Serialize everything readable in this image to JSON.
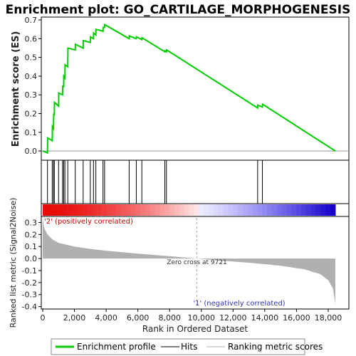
{
  "chart_data": {
    "type": "line",
    "title": "Enrichment plot: GO_CARTILAGE_MORPHOGENESIS",
    "x_range": [
      0,
      18500
    ],
    "x_ticks": [
      "0",
      "2,000",
      "4,000",
      "6,000",
      "8,000",
      "10,000",
      "12,000",
      "14,000",
      "16,000",
      "18,000"
    ],
    "x_tick_values": [
      0,
      2000,
      4000,
      6000,
      8000,
      10000,
      12000,
      14000,
      16000,
      18000
    ],
    "xlabel": "Rank in Ordered Dataset",
    "es_panel": {
      "ylabel": "Enrichment score (ES)",
      "ylim": [
        -0.03,
        0.7
      ],
      "y_ticks": [
        "0.0",
        "0.1",
        "0.2",
        "0.3",
        "0.4",
        "0.5",
        "0.6",
        "0.7"
      ],
      "y_tick_values": [
        0,
        0.1,
        0.2,
        0.3,
        0.4,
        0.5,
        0.6,
        0.7
      ],
      "series": [
        {
          "name": "Enrichment profile",
          "color": "#00cc00",
          "x": [
            0,
            300,
            310,
            600,
            610,
            680,
            690,
            730,
            740,
            1000,
            1010,
            1250,
            1260,
            1320,
            1330,
            1400,
            1410,
            1580,
            1590,
            2050,
            2060,
            2550,
            2560,
            3000,
            3010,
            3200,
            3210,
            3350,
            3360,
            3800,
            3810,
            3900,
            3910,
            5450,
            5460,
            5900,
            5910,
            6250,
            6260,
            7700,
            7710,
            7800,
            7810,
            13550,
            13560,
            13850,
            13860,
            18450
          ],
          "y": [
            0,
            -0.01,
            0.07,
            0.055,
            0.13,
            0.12,
            0.2,
            0.19,
            0.26,
            0.24,
            0.31,
            0.3,
            0.35,
            0.34,
            0.4,
            0.39,
            0.46,
            0.45,
            0.55,
            0.54,
            0.57,
            0.55,
            0.59,
            0.58,
            0.61,
            0.6,
            0.63,
            0.62,
            0.65,
            0.64,
            0.66,
            0.66,
            0.675,
            0.6,
            0.615,
            0.6,
            0.61,
            0.595,
            0.605,
            0.53,
            0.535,
            0.53,
            0.54,
            0.23,
            0.245,
            0.235,
            0.25,
            0.0
          ]
        }
      ]
    },
    "hits": [
      300,
      600,
      680,
      730,
      1000,
      1250,
      1320,
      1400,
      1580,
      2050,
      2550,
      3000,
      3200,
      3350,
      3800,
      3900,
      5450,
      5900,
      6250,
      7700,
      7800,
      13550,
      13850
    ],
    "metric_panel": {
      "ylabel": "Ranked list metric (Signal2Noise)",
      "ylim": [
        -0.42,
        0.35
      ],
      "y_ticks": [
        "0.3",
        "0.2",
        "0.1",
        "0.0",
        "-0.1",
        "-0.2",
        "-0.3",
        "-0.4"
      ],
      "y_tick_values": [
        0.3,
        0.2,
        0.1,
        0.0,
        -0.1,
        -0.2,
        -0.3,
        -0.4
      ],
      "x": [
        0,
        100,
        300,
        600,
        1000,
        2000,
        3000,
        4000,
        6000,
        8000,
        9721,
        11000,
        13000,
        15000,
        16500,
        17500,
        18000,
        18300,
        18450
      ],
      "y": [
        0.33,
        0.25,
        0.2,
        0.16,
        0.13,
        0.1,
        0.08,
        0.065,
        0.04,
        0.02,
        0.0,
        -0.015,
        -0.035,
        -0.06,
        -0.09,
        -0.13,
        -0.18,
        -0.25,
        -0.38
      ],
      "fill_color": "#b0b0b0"
    },
    "zero_cross": 9721,
    "annotations": {
      "positive": "'2' (positively correlated)",
      "negative": "'1' (negatively correlated)",
      "zero_cross": "Zero cross at 9721"
    },
    "legend": {
      "placement": "bottom",
      "items": [
        {
          "label": "Enrichment profile",
          "color": "#00cc00"
        },
        {
          "label": "Hits",
          "color": "#000000"
        },
        {
          "label": "Ranking metric scores",
          "color": "#b0b0b0"
        }
      ]
    },
    "grid": false
  }
}
